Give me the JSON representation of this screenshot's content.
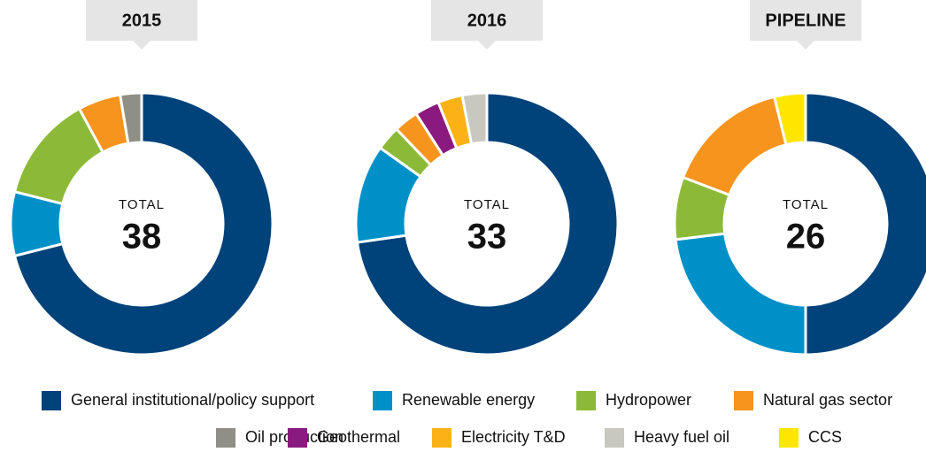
{
  "chart_data": [
    {
      "type": "pie",
      "title": "2015",
      "total_label": "TOTAL",
      "total": 38,
      "values": [
        27,
        3,
        5,
        2,
        1,
        0,
        0,
        0,
        0
      ]
    },
    {
      "type": "pie",
      "title": "2016",
      "total_label": "TOTAL",
      "total": 33,
      "values": [
        24,
        4,
        1,
        1,
        0,
        1,
        1,
        1,
        0
      ]
    },
    {
      "type": "pie",
      "title": "PIPELINE",
      "total_label": "TOTAL",
      "total": 26,
      "values": [
        13,
        6,
        2,
        4,
        0,
        0,
        0,
        0,
        1
      ]
    }
  ],
  "legend": [
    {
      "name": "General institutional/policy support",
      "color": "#00427a"
    },
    {
      "name": "Renewable energy",
      "color": "#0090c8"
    },
    {
      "name": "Hydropower",
      "color": "#8cba38"
    },
    {
      "name": "Natural gas sector",
      "color": "#f7941d"
    },
    {
      "name": "Oil production",
      "color": "#8f8f85"
    },
    {
      "name": "Geothermal",
      "color": "#8b1a7f"
    },
    {
      "name": "Electricity T&D",
      "color": "#fbb217"
    },
    {
      "name": "Heavy fuel oil",
      "color": "#c8c8c0"
    },
    {
      "name": "CCS",
      "color": "#ffe600"
    }
  ]
}
